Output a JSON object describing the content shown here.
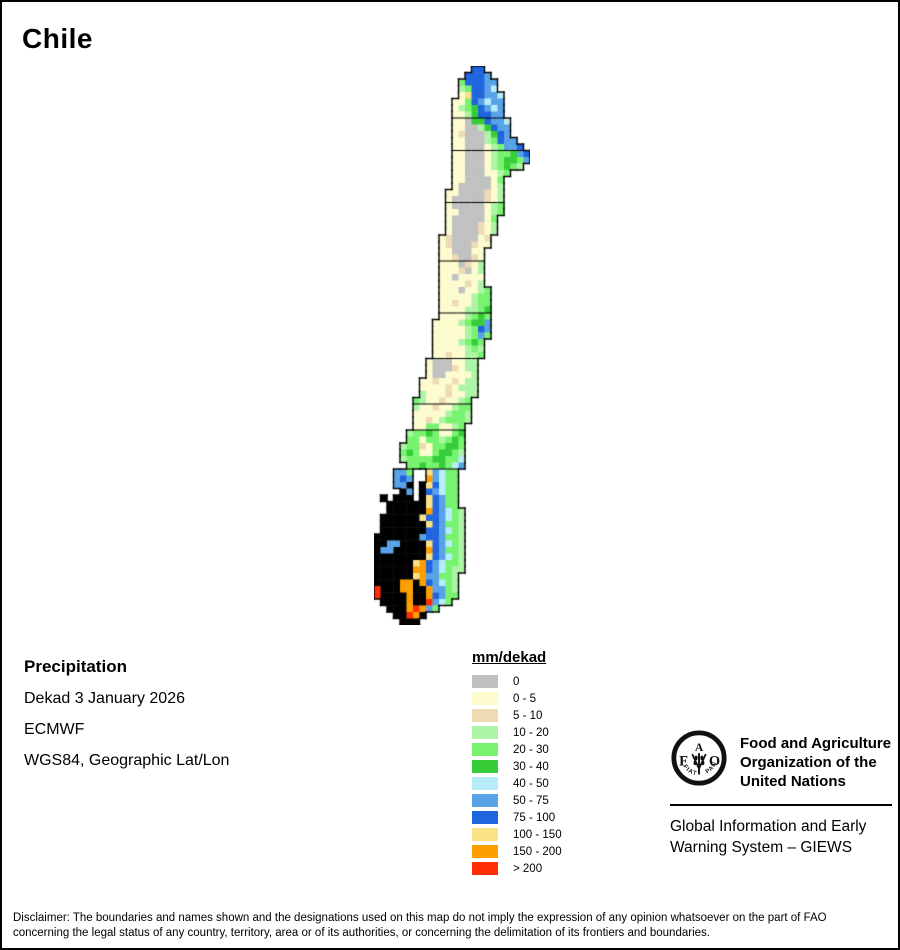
{
  "page": {
    "title": "Chile",
    "background": "#ffffff",
    "border_color": "#000000"
  },
  "info": {
    "heading": "Precipitation",
    "lines": [
      "Dekad 3 January 2026",
      "ECMWF",
      "WGS84, Geographic Lat/Lon"
    ]
  },
  "legend": {
    "title": "mm/dekad",
    "items": [
      {
        "label": "0",
        "color": "#c1c1c1"
      },
      {
        "label": "0 - 5",
        "color": "#fdfccf"
      },
      {
        "label": "5 - 10",
        "color": "#eedbb3"
      },
      {
        "label": "10 - 20",
        "color": "#aef4a6"
      },
      {
        "label": "20 - 30",
        "color": "#77f370"
      },
      {
        "label": "30 - 40",
        "color": "#36cd39"
      },
      {
        "label": "40 - 50",
        "color": "#b7edf8"
      },
      {
        "label": "50 - 75",
        "color": "#58a3e8"
      },
      {
        "label": "75 - 100",
        "color": "#2065dd"
      },
      {
        "label": "100 - 150",
        "color": "#fbe287"
      },
      {
        "label": "150 - 200",
        "color": "#ff9e00"
      },
      {
        "label": "> 200",
        "color": "#ff2e05"
      }
    ]
  },
  "branding": {
    "fao_logo": "fao-emblem-fiat-panis",
    "fao_name_lines": [
      "Food and Agriculture",
      "Organization of the",
      "United Nations"
    ],
    "giews_lines": [
      "Global Information and Early",
      "Warning System – GIEWS"
    ]
  },
  "disclaimer": {
    "lines": [
      "Disclaimer: The boundaries and names shown and the designations used on this map do not imply the expression of any opinion whatsoever on the part of FAO",
      "concerning the legal status of any country, territory, area or of its authorities, or concerning the delimitation of its frontiers and boundaries."
    ]
  },
  "map": {
    "type": "raster-grid",
    "units": "mm/dekad",
    "cell_size": 6.5,
    "outline_color": "#000000",
    "palette": {
      "G": "#c1c1c1",
      "Y": "#fdfccf",
      "T": "#eedbb3",
      "L": "#aef4a6",
      "M": "#77f370",
      "D": "#36cd39",
      "C": "#b7edf8",
      "B": "#58a3e8",
      "U": "#2065dd",
      "F": "#fbe287",
      "O": "#ff9e00",
      "R": "#ff2e05",
      "K": "#000000"
    },
    "boundary_rows": [
      8,
      13,
      21,
      30,
      38,
      45,
      52,
      56,
      62
    ],
    "rows": [
      "...............UU.......",
      "..............UUUB......",
      ".............MUUUBB.....",
      ".............LMUUBC.....",
      ".............YFUUBBC....",
      "............YYMUBCBB....",
      "............YLMDUBCB....",
      "............YYLDUUBB....",
      "............YYGDDUBBC...",
      "............YYGGLDUBB...",
      "............YTGGGLDUB...",
      "............YYGGGLMUBB..",
      "............YYGGGYLMBBU.",
      "............YYGGGYLMMDBU",
      "............YYGGGYLMDDMB",
      "............YYGGGYLMDML.",
      "............YYGGGYYLM...",
      "............YYGGGGYM....",
      "............YGGGGGYL....",
      "...........YYGGGGTYL....",
      "...........YGGGGGTYL....",
      "...........YGGGGGYLM....",
      "...........YYGGGGYLM....",
      "...........YGGGGGYM.....",
      "...........YGGGGTYL.....",
      "...........YGGGGTYL.....",
      "..........YTGGGGYT......",
      "..........YTGGGTYY......",
      "..........YYGGGYY.......",
      "..........YYTGGTY.......",
      "..........YYYGTYL.......",
      "..........YYYTGYL.......",
      "..........YYGYYYY.......",
      "..........YYYYTYL.......",
      "..........YYYGYYLM......",
      "..........YYYYYLMM......",
      "..........YYTYYLMM......",
      "..........YYYYLLMD......",
      "..........YYYYLMDM......",
      ".........YYYYLMDDB......",
      ".........YYYYYLMUB......",
      ".........YYYYYLMBM......",
      ".........YYYYLMDM.......",
      ".........YYYYYLML.......",
      ".........YYTYYLLM.......",
      "........YGGGYYLL........",
      "........YGGGTYLL........",
      "........YGGYYYYL........",
      ".......YYTYYTYLL........",
      ".......YYYYTYLLL........",
      ".......LYYYTYYLL........",
      "......MLYYTYYLM.........",
      "......LYYTYYLMM.........",
      "......YYYYYLMML.........",
      "......YYTYLMMML.........",
      "......YYMMYYLM..........",
      ".....LMMDMYYMD..........",
      ".....MMYMMLMDM..........",
      "....LMMTYMMDDM..........",
      "....MDMYYMDDML..........",
      "....LMMMMDDMMC..........",
      ".....MMDMMDMCB..........",
      "...BBM..FBCMM...........",
      "...BUB..OBCMM...........",
      "...BBK.KFUCMM...........",
      "....KB.KUBCMM...........",
      ".K.KKK.KFUBMM...........",
      "..KKKKKKFUBMM...........",
      "..KKKKKKOUBCML..........",
      ".KKKKKKFUUBCML..........",
      ".KKKKKKKFUBMML..........",
      ".KKKKKKKUUBCML..........",
      "KKKKKKKBUUBMML..........",
      "KKBBKKKKFUBCML..........",
      "KBBKKKKKOUBMML..........",
      "KKKKKKKKFUBCML..........",
      "KKKKKKFOUBCMML..........",
      "KKKKKKOOUBCMLL..........",
      "KKKKKKFOBBMML...........",
      "KKKKOOKOUBCML...........",
      "RKKKOOKKOBBML...........",
      "RKKKKOKKOUBMM...........",
      ".KKKKOKKRBCM............",
      "..KKKOROBM..............",
      "...KKROK................",
      "....KKK................."
    ]
  }
}
